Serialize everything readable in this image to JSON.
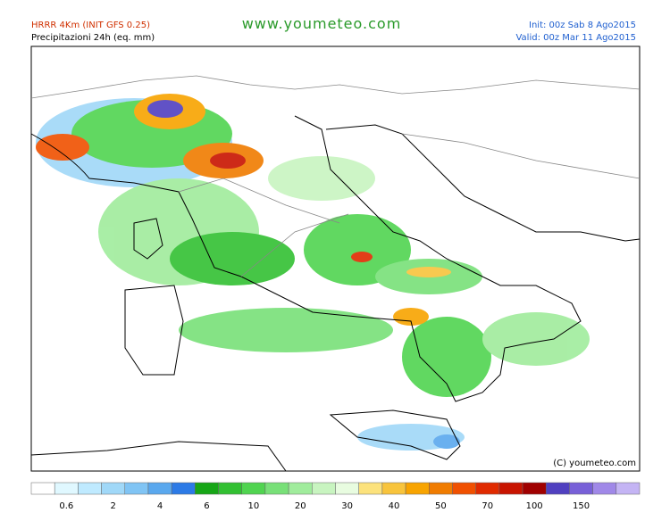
{
  "header": {
    "model": "HRRR 4Km (INIT GFS 0.25)",
    "subtitle": "Precipitazioni 24h (eq. mm)",
    "site": "www.youmeteo.com",
    "init": "Init: 00z Sab 8 Ago2015",
    "valid": "Valid: 00z Mar 11 Ago2015"
  },
  "map": {
    "copyright": "(C) youmeteo.com"
  },
  "legend": {
    "colors": [
      "#ffffff",
      "#e0f8ff",
      "#bfeaff",
      "#a0d8f8",
      "#80c4f4",
      "#5aa8ee",
      "#2c7ae6",
      "#16a616",
      "#32c032",
      "#50d450",
      "#78e078",
      "#a0ec9c",
      "#c8f4c0",
      "#e8fce0",
      "#fce27c",
      "#f8c43c",
      "#f8a400",
      "#f07c00",
      "#f05000",
      "#e02a00",
      "#c81400",
      "#a00000",
      "#5040c0",
      "#7860d8",
      "#a088e8",
      "#c4b4f4"
    ],
    "labels": [
      "0.6",
      "2",
      "4",
      "6",
      "10",
      "20",
      "30",
      "40",
      "50",
      "70",
      "100",
      "150"
    ]
  }
}
